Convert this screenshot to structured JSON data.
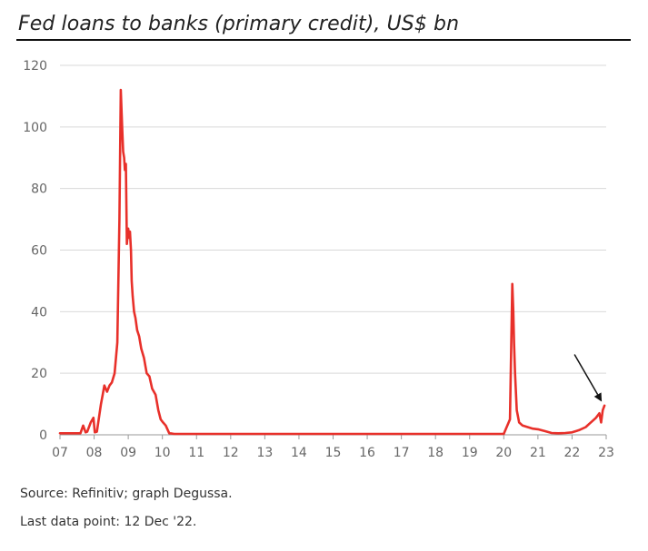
{
  "chart_data": {
    "type": "line",
    "title": "Fed loans to banks (primary credit), US$ bn",
    "xlabel": "",
    "ylabel": "",
    "xlim": [
      2007.0,
      2023.0
    ],
    "ylim": [
      0,
      120
    ],
    "y_ticks": [
      0,
      20,
      40,
      60,
      80,
      100,
      120
    ],
    "x_ticks": [
      {
        "value": 2007,
        "label": "07"
      },
      {
        "value": 2008,
        "label": "08"
      },
      {
        "value": 2009,
        "label": "09"
      },
      {
        "value": 2010,
        "label": "10"
      },
      {
        "value": 2011,
        "label": "11"
      },
      {
        "value": 2012,
        "label": "12"
      },
      {
        "value": 2013,
        "label": "13"
      },
      {
        "value": 2014,
        "label": "14"
      },
      {
        "value": 2015,
        "label": "15"
      },
      {
        "value": 2016,
        "label": "16"
      },
      {
        "value": 2017,
        "label": "17"
      },
      {
        "value": 2018,
        "label": "18"
      },
      {
        "value": 2019,
        "label": "19"
      },
      {
        "value": 2020,
        "label": "20"
      },
      {
        "value": 2021,
        "label": "21"
      },
      {
        "value": 2022,
        "label": "22"
      },
      {
        "value": 2023,
        "label": "23"
      }
    ],
    "grid": true,
    "legend": "none",
    "series_color": "#e8302a",
    "annotation": {
      "type": "arrow",
      "target": [
        2022.95,
        9
      ]
    },
    "series": [
      {
        "x": [
          2007.0,
          2007.6,
          2007.68,
          2007.75,
          2007.8,
          2007.9,
          2007.98,
          2008.02,
          2008.08,
          2008.2,
          2008.25,
          2008.3,
          2008.38,
          2008.45,
          2008.52,
          2008.6,
          2008.68,
          2008.74,
          2008.78,
          2008.82,
          2008.85,
          2008.88,
          2008.9,
          2008.93,
          2008.96,
          2009.0,
          2009.02,
          2009.05,
          2009.08,
          2009.1,
          2009.13,
          2009.17,
          2009.21,
          2009.26,
          2009.32,
          2009.38,
          2009.46,
          2009.54,
          2009.62,
          2009.7,
          2009.8,
          2009.88,
          2009.95,
          2010.02,
          2010.1,
          2010.2,
          2010.28,
          2010.35,
          2010.42,
          2010.5,
          2011.0,
          2012.0,
          2013.0,
          2014.0,
          2015.0,
          2016.0,
          2017.0,
          2018.0,
          2019.0,
          2020.0,
          2020.18,
          2020.25,
          2020.28,
          2020.3,
          2020.33,
          2020.38,
          2020.45,
          2020.55,
          2020.7,
          2020.85,
          2021.0,
          2021.2,
          2021.4,
          2021.6,
          2021.8,
          2022.0,
          2022.2,
          2022.4,
          2022.5,
          2022.6,
          2022.7,
          2022.8,
          2022.85,
          2022.9,
          2022.95
        ]
      }
    ],
    "values": [
      0.5,
      0.5,
      3,
      0.8,
      1,
      4,
      5.5,
      0.8,
      1,
      10,
      13,
      16,
      14,
      16,
      17,
      20,
      30,
      70,
      112,
      100,
      92,
      90,
      86,
      88,
      62,
      67,
      64,
      66,
      60,
      50,
      45,
      40,
      38,
      34,
      32,
      28,
      25,
      20,
      19,
      15,
      13,
      8,
      5,
      4,
      3,
      0.5,
      0.4,
      0.3,
      0.3,
      0.3,
      0.3,
      0.3,
      0.3,
      0.3,
      0.3,
      0.3,
      0.3,
      0.3,
      0.3,
      0.3,
      5,
      49,
      40,
      30,
      20,
      8,
      4,
      3,
      2.5,
      2,
      1.8,
      1.2,
      0.6,
      0.5,
      0.6,
      0.8,
      1.5,
      2.5,
      3.5,
      4.5,
      5.5,
      7,
      4,
      8,
      9.5
    ]
  },
  "footer": {
    "source": "Source: Refinitiv; graph Degussa.",
    "last_point": "Last data point: 12 Dec '22."
  }
}
